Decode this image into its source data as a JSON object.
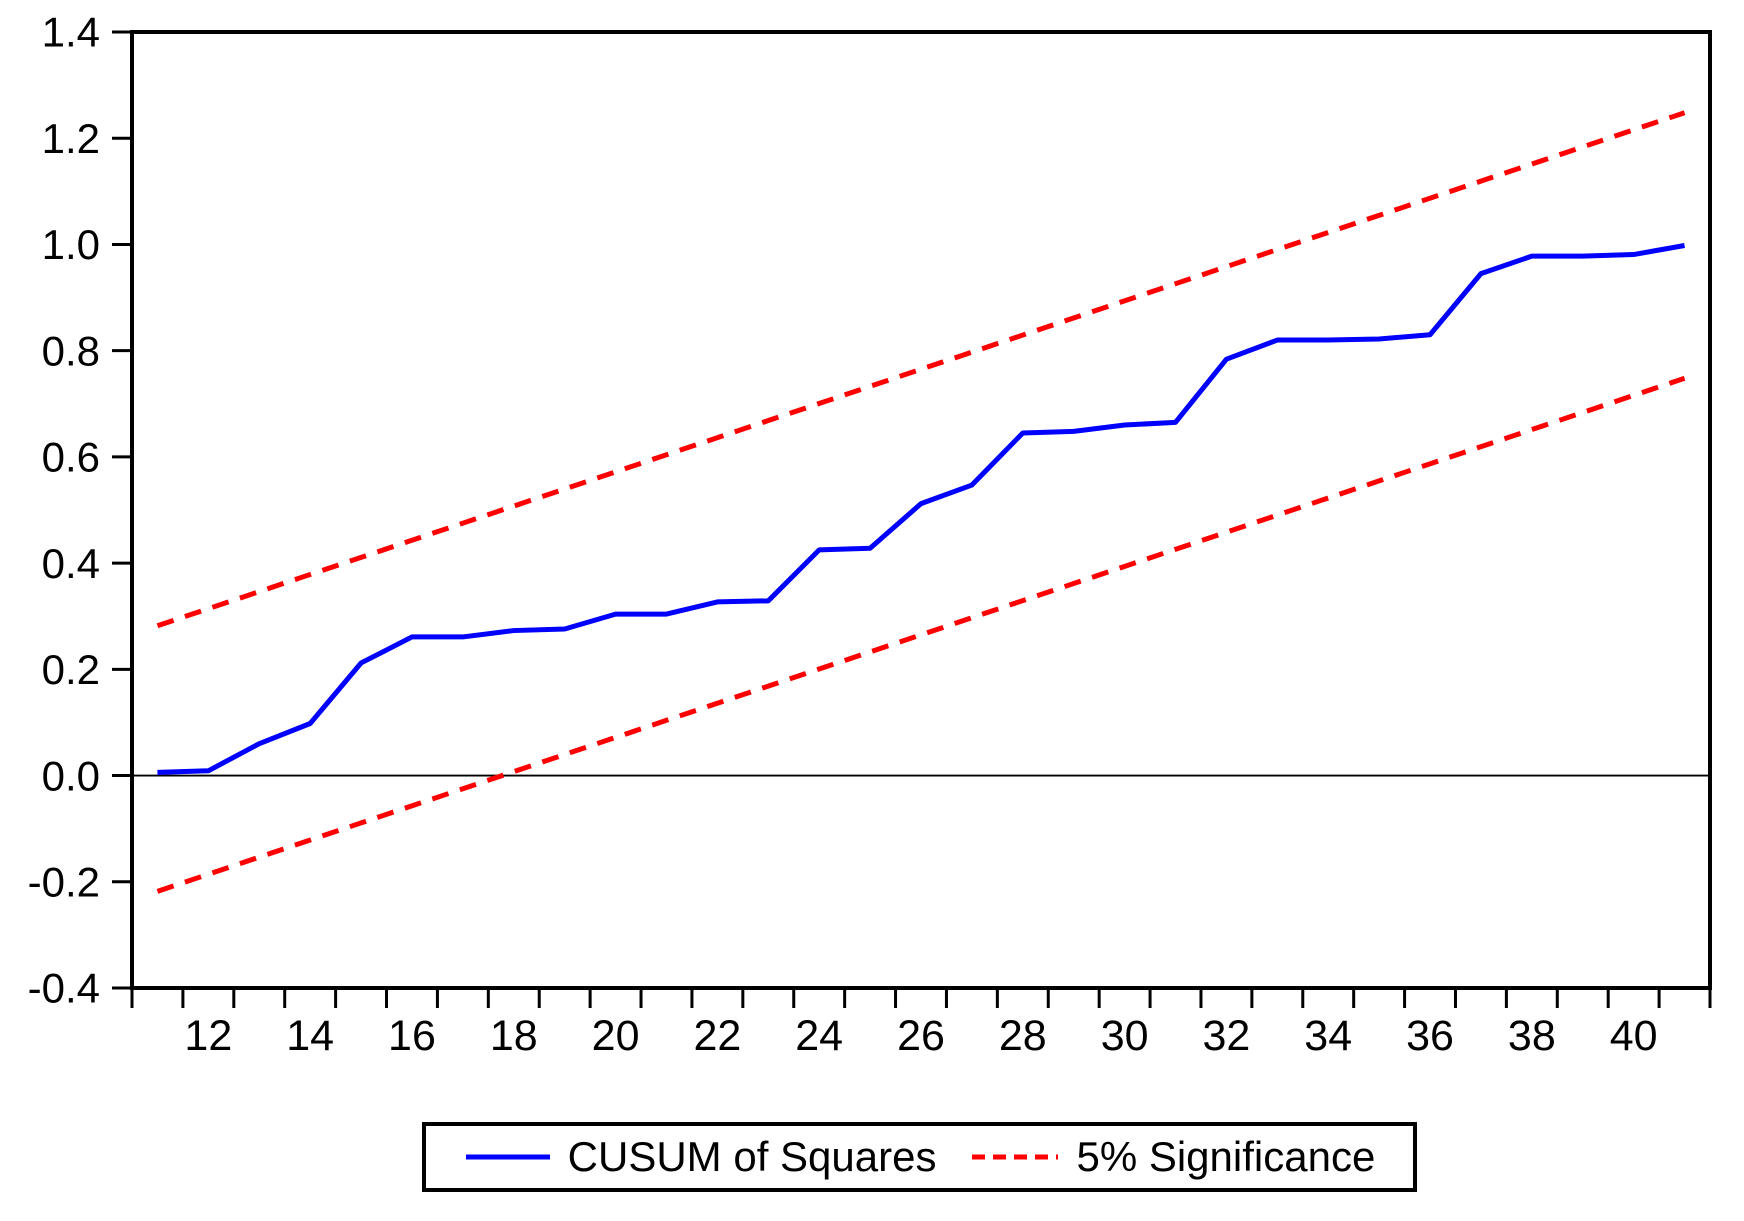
{
  "chart_data": {
    "type": "line",
    "title": "",
    "xlabel": "",
    "ylabel": "",
    "grid": false,
    "xlim": [
      10.5,
      41.5
    ],
    "ylim": [
      -0.4,
      1.4
    ],
    "zero_line": 0.0,
    "x": [
      11,
      12,
      13,
      14,
      15,
      16,
      17,
      18,
      19,
      20,
      21,
      22,
      23,
      24,
      25,
      26,
      27,
      28,
      29,
      30,
      31,
      32,
      33,
      34,
      35,
      36,
      37,
      38,
      39,
      40,
      41
    ],
    "series": [
      {
        "name": "CUSUM of Squares",
        "color": "#0000ff",
        "width": 5,
        "dash": null,
        "values": [
          0.006,
          0.009,
          0.06,
          0.098,
          0.212,
          0.261,
          0.261,
          0.273,
          0.276,
          0.304,
          0.304,
          0.327,
          0.329,
          0.425,
          0.428,
          0.512,
          0.547,
          0.645,
          0.648,
          0.66,
          0.665,
          0.784,
          0.82,
          0.82,
          0.822,
          0.83,
          0.945,
          0.978,
          0.978,
          0.981,
          0.998
        ]
      },
      {
        "name": "5% Significance (upper bound)",
        "color": "#ff0000",
        "width": 5,
        "dash": [
          17,
          12
        ],
        "x": [
          11,
          41
        ],
        "values": [
          0.282,
          1.248
        ]
      },
      {
        "name": "5% Significance (lower bound)",
        "color": "#ff0000",
        "width": 5,
        "dash": [
          17,
          12
        ],
        "x": [
          11,
          41
        ],
        "values": [
          -0.218,
          0.748
        ]
      }
    ],
    "y_axis": {
      "tick_values": [
        1.4,
        1.2,
        1.0,
        0.8,
        0.6,
        0.4,
        0.2,
        0.0,
        -0.2,
        -0.4
      ],
      "tick_labels": [
        "1.4",
        "1.2",
        "1.0",
        "0.8",
        "0.6",
        "0.4",
        "0.2",
        "0.0",
        "-0.2",
        "-0.4"
      ]
    },
    "x_axis": {
      "label_values": [
        12,
        14,
        16,
        18,
        20,
        22,
        24,
        26,
        28,
        30,
        32,
        34,
        36,
        38,
        40
      ],
      "tick_labels": [
        "12",
        "14",
        "16",
        "18",
        "20",
        "22",
        "24",
        "26",
        "28",
        "30",
        "32",
        "34",
        "36",
        "38",
        "40"
      ],
      "minor_tick_start": 10.5,
      "minor_tick_step": 1,
      "minor_tick_count": 32
    },
    "legend_position": "bottom-center"
  },
  "legend": {
    "items": [
      {
        "label": "CUSUM of Squares",
        "color": "#0000ff",
        "style": "solid"
      },
      {
        "label": "5% Significance",
        "color": "#ff0000",
        "style": "dashed"
      }
    ]
  },
  "colors": {
    "cusum_line": "#0000ff",
    "significance_line": "#ff0000",
    "frame": "#000000",
    "zero_line": "#000000",
    "background": "#ffffff"
  }
}
